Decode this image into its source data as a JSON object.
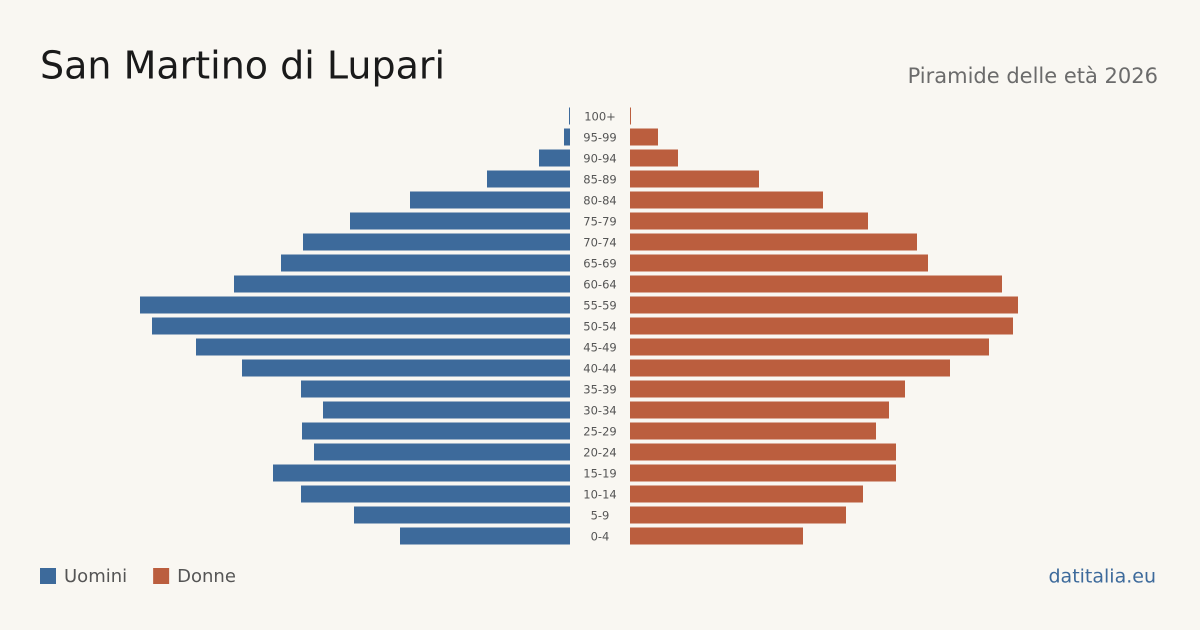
{
  "chart_data": {
    "type": "pyramid",
    "title": "San Martino di Lupari",
    "subtitle": "Piramide delle età 2026",
    "source": "datitalia.eu",
    "categories": [
      "100+",
      "95-99",
      "90-94",
      "85-89",
      "80-84",
      "75-79",
      "70-74",
      "65-69",
      "60-64",
      "55-59",
      "50-54",
      "45-49",
      "40-44",
      "35-39",
      "30-34",
      "25-29",
      "20-24",
      "15-19",
      "10-14",
      "5-9",
      "0-4"
    ],
    "series": [
      {
        "name": "Uomini",
        "color": "#3d6a9b",
        "values": [
          1,
          6,
          31,
          83,
          160,
          220,
          267,
          289,
          336,
          430,
          418,
          374,
          328,
          269,
          247,
          268,
          256,
          297,
          269,
          216,
          170
        ]
      },
      {
        "name": "Donne",
        "color": "#bb5e3e",
        "values": [
          1,
          28,
          48,
          129,
          193,
          238,
          287,
          298,
          372,
          388,
          383,
          359,
          320,
          275,
          259,
          246,
          266,
          266,
          233,
          216,
          173
        ]
      }
    ]
  }
}
